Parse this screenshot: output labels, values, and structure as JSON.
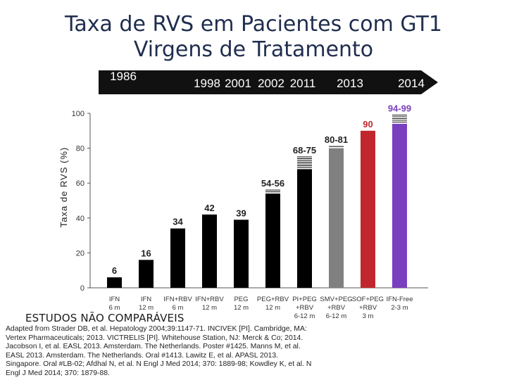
{
  "title_line1": "Taxa de RVS em Pacientes com GT1",
  "title_line2": "Virgens de Tratamento",
  "timeline": {
    "years": [
      "1986",
      "1998",
      "2001",
      "2002",
      "2011",
      "2013",
      "2014"
    ],
    "bar_color": "#111111",
    "text_color": "#ffffff"
  },
  "chart_data": {
    "type": "bar",
    "ylabel": "Taxa de RVS (%)",
    "ylim": [
      0,
      100
    ],
    "yticks": [
      "0",
      "20",
      "40",
      "60",
      "80",
      "100"
    ],
    "grid": false,
    "categories": [
      {
        "lines": [
          "IFN",
          "6 m"
        ]
      },
      {
        "lines": [
          "IFN",
          "12 m"
        ]
      },
      {
        "lines": [
          "IFN+RBV",
          "6 m"
        ]
      },
      {
        "lines": [
          "IFN+RBV",
          "12 m"
        ]
      },
      {
        "lines": [
          "PEG",
          "12 m"
        ]
      },
      {
        "lines": [
          "PEG+RBV",
          "12 m"
        ]
      },
      {
        "lines": [
          "PI+PEG",
          "+RBV",
          "6-12 m"
        ]
      },
      {
        "lines": [
          "SMV+PEG",
          "+RBV",
          "6-12 m"
        ]
      },
      {
        "lines": [
          "SOF+PEG",
          "+RBV",
          "3 m"
        ]
      },
      {
        "lines": [
          "IFN-Free",
          "2-3 m"
        ]
      }
    ],
    "values": [
      6,
      16,
      34,
      42,
      39,
      54,
      68,
      80,
      90,
      94
    ],
    "ranges": [
      null,
      null,
      null,
      null,
      null,
      [
        54,
        56
      ],
      [
        68,
        75
      ],
      [
        80,
        81
      ],
      null,
      [
        94,
        99
      ]
    ],
    "data_labels": [
      "6",
      "16",
      "34",
      "42",
      "39",
      "54-56",
      "68-75",
      "80-81",
      "90",
      "94-99"
    ],
    "bar_colors": [
      "#000000",
      "#000000",
      "#000000",
      "#000000",
      "#000000",
      "#000000",
      "#000000",
      "#808080",
      "#c0272d",
      "#7a3fbf"
    ],
    "label_colors": [
      "#222222",
      "#222222",
      "#222222",
      "#222222",
      "#222222",
      "#222222",
      "#222222",
      "#222222",
      "#c0272d",
      "#7a3fbf"
    ]
  },
  "warning": "ESTUDOS NÃO COMPARÁVEIS",
  "references": [
    "Adapted from Strader DB, et al. Hepatology 2004;39:1147-71. INCIVEK [PI]. Cambridge, MA:",
    "Vertex Pharmaceuticals; 2013. VICTRELIS [PI]. Whitehouse Station, NJ: Merck & Co; 2014.",
    "Jacobson I, et al. EASL 2013. Amsterdam. The Netherlands. Poster #1425. Manns M, et al.",
    "EASL 2013. Amsterdam. The Netherlands. Oral #1413. Lawitz E, et al. APASL 2013.",
    "Singapore. Oral #LB-02; Afdhal N, et al. N Engl J Med 2014; 370: 1889-98; Kowdley K, et al. N",
    "Engl J Med 2014; 370: 1879-88."
  ]
}
